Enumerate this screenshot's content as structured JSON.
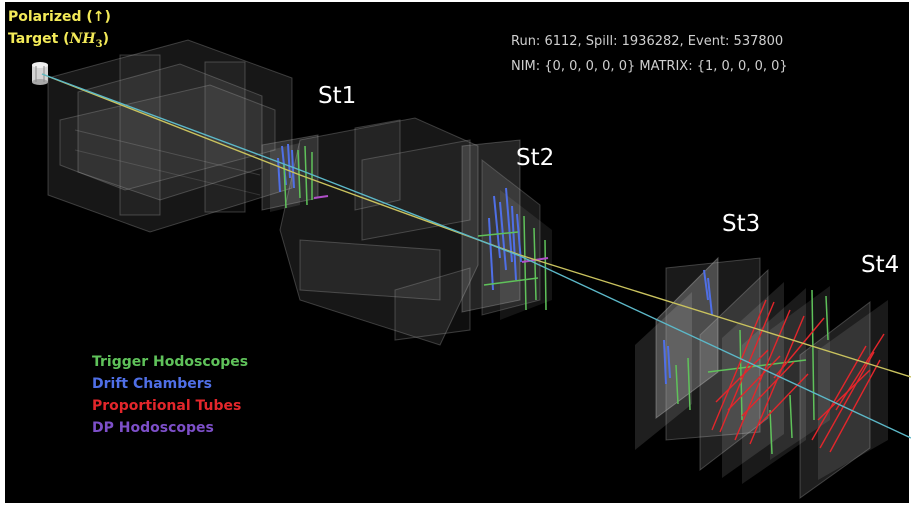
{
  "target": {
    "line1": "Polarized (↑)",
    "line2_prefix": "Target (",
    "formula_main": "NH",
    "formula_sub": "3",
    "line2_suffix": ")"
  },
  "event_info": {
    "line1": "Run: 6112, Spill: 1936282, Event: 537800",
    "line2": "NIM: {0, 0, 0, 0, 0}  MATRIX: {1, 0, 0, 0, 0}"
  },
  "stations": [
    {
      "label": "St1"
    },
    {
      "label": "St2"
    },
    {
      "label": "St3"
    },
    {
      "label": "St4"
    }
  ],
  "legend": [
    {
      "label": "Trigger Hodoscopes",
      "color": "#5fc25a"
    },
    {
      "label": "Drift Chambers",
      "color": "#4f6fe6"
    },
    {
      "label": "Proportional Tubes",
      "color": "#e3262b"
    },
    {
      "label": "DP Hodoscopes",
      "color": "#7d4fc9"
    }
  ],
  "colors": {
    "background": "#000000",
    "track_yellow": "#c9c25e",
    "track_cyan": "#5cb8c8"
  }
}
